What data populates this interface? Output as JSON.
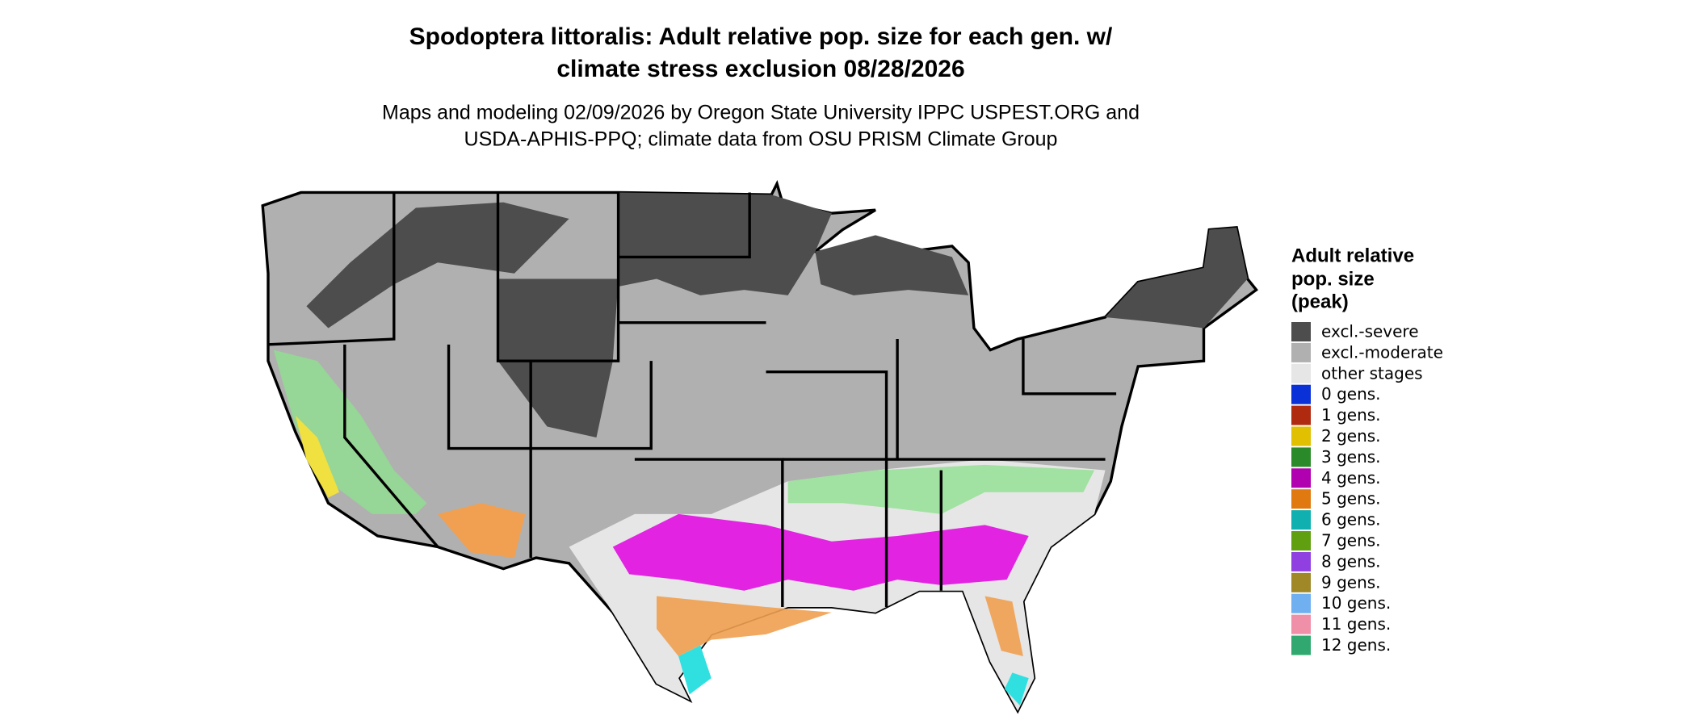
{
  "header": {
    "title": [
      "Spodoptera littoralis: Adult relative pop. size for each gen. w/",
      "climate stress exclusion 08/28/2026"
    ],
    "subtitle": [
      "Maps and modeling 02/09/2026 by Oregon State University IPPC USPEST.ORG and",
      "USDA-APHIS-PPQ; climate data from OSU PRISM Climate Group"
    ]
  },
  "legend": {
    "title": [
      "Adult relative",
      "pop. size",
      "(peak)"
    ],
    "items": [
      {
        "label": "excl.-severe",
        "color": "#4d4d4d"
      },
      {
        "label": "excl.-moderate",
        "color": "#b0b0b0"
      },
      {
        "label": "other stages",
        "color": "#e6e6e6"
      },
      {
        "label": "0 gens.",
        "color": "#0a30d8"
      },
      {
        "label": "1 gens.",
        "color": "#b02a10"
      },
      {
        "label": "2 gens.",
        "color": "#e0c000"
      },
      {
        "label": "3 gens.",
        "color": "#2a8a2a"
      },
      {
        "label": "4 gens.",
        "color": "#b000b0"
      },
      {
        "label": "5 gens.",
        "color": "#e07a10"
      },
      {
        "label": "6 gens.",
        "color": "#10b0b0"
      },
      {
        "label": "7 gens.",
        "color": "#60a010"
      },
      {
        "label": "8 gens.",
        "color": "#9040e0"
      },
      {
        "label": "9 gens.",
        "color": "#a08828"
      },
      {
        "label": "10 gens.",
        "color": "#70b0f0"
      },
      {
        "label": "11 gens.",
        "color": "#f090a8"
      },
      {
        "label": "12 gens.",
        "color": "#30a870"
      }
    ]
  }
}
